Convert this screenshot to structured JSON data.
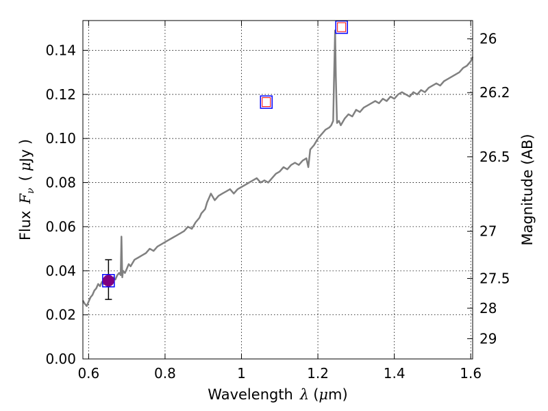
{
  "chart_data": {
    "type": "line",
    "xlabel": {
      "prefix": "Wavelength",
      "symbol": "λ",
      "unit_open": "(",
      "unit_mu": "μ",
      "unit_rest": "m)"
    },
    "ylabel": {
      "prefix": "Flux",
      "symbol": "F",
      "sub": "ν",
      "unit_open": "(",
      "unit_mu": "μ",
      "unit_rest": "Jy )"
    },
    "y2label": "Magnitude (AB)",
    "xlim": [
      0.585,
      1.605
    ],
    "ylim": [
      0.0,
      0.1535
    ],
    "grid": true,
    "x_ticks": [
      {
        "value": 0.6,
        "label": "0.6"
      },
      {
        "value": 0.8,
        "label": "0.8"
      },
      {
        "value": 1.0,
        "label": "1"
      },
      {
        "value": 1.2,
        "label": "1.2"
      },
      {
        "value": 1.4,
        "label": "1.4"
      },
      {
        "value": 1.6,
        "label": "1.6"
      }
    ],
    "y_ticks": [
      {
        "value": 0.0,
        "label": "0.00"
      },
      {
        "value": 0.02,
        "label": "0.02"
      },
      {
        "value": 0.04,
        "label": "0.04"
      },
      {
        "value": 0.06,
        "label": "0.06"
      },
      {
        "value": 0.08,
        "label": "0.08"
      },
      {
        "value": 0.1,
        "label": "0.10"
      },
      {
        "value": 0.12,
        "label": "0.12"
      },
      {
        "value": 0.14,
        "label": "0.14"
      }
    ],
    "y2_ticks": [
      {
        "label": "26",
        "y_equiv": 0.1452
      },
      {
        "label": "26.2",
        "y_equiv": 0.1208
      },
      {
        "label": "26.5",
        "y_equiv": 0.0917
      },
      {
        "label": "27",
        "y_equiv": 0.0579
      },
      {
        "label": "27.5",
        "y_equiv": 0.0365
      },
      {
        "label": "28",
        "y_equiv": 0.023
      },
      {
        "label": "29",
        "y_equiv": 0.0092
      }
    ],
    "series": [
      {
        "type": "line",
        "color": "#808080",
        "x": [
          0.585,
          0.59,
          0.595,
          0.6,
          0.605,
          0.61,
          0.615,
          0.62,
          0.625,
          0.63,
          0.635,
          0.64,
          0.645,
          0.65,
          0.655,
          0.66,
          0.665,
          0.67,
          0.675,
          0.68,
          0.684,
          0.686,
          0.688,
          0.69,
          0.695,
          0.7,
          0.705,
          0.71,
          0.72,
          0.73,
          0.74,
          0.75,
          0.76,
          0.77,
          0.78,
          0.79,
          0.8,
          0.81,
          0.82,
          0.83,
          0.84,
          0.85,
          0.86,
          0.87,
          0.88,
          0.89,
          0.895,
          0.9,
          0.905,
          0.91,
          0.915,
          0.92,
          0.93,
          0.94,
          0.95,
          0.96,
          0.97,
          0.98,
          0.99,
          1.0,
          1.01,
          1.02,
          1.03,
          1.04,
          1.05,
          1.06,
          1.07,
          1.08,
          1.09,
          1.1,
          1.11,
          1.12,
          1.13,
          1.14,
          1.15,
          1.16,
          1.17,
          1.175,
          1.18,
          1.185,
          1.19,
          1.2,
          1.21,
          1.22,
          1.23,
          1.235,
          1.24,
          1.242,
          1.245,
          1.247,
          1.25,
          1.255,
          1.26,
          1.27,
          1.28,
          1.29,
          1.3,
          1.31,
          1.32,
          1.33,
          1.34,
          1.35,
          1.36,
          1.37,
          1.38,
          1.39,
          1.4,
          1.41,
          1.42,
          1.43,
          1.44,
          1.45,
          1.46,
          1.47,
          1.48,
          1.49,
          1.5,
          1.51,
          1.52,
          1.53,
          1.54,
          1.55,
          1.56,
          1.57,
          1.58,
          1.59,
          1.6,
          1.605
        ],
        "y": [
          0.0265,
          0.025,
          0.024,
          0.026,
          0.028,
          0.029,
          0.031,
          0.032,
          0.034,
          0.033,
          0.035,
          0.034,
          0.036,
          0.035,
          0.036,
          0.035,
          0.037,
          0.036,
          0.038,
          0.039,
          0.038,
          0.0555,
          0.037,
          0.04,
          0.039,
          0.041,
          0.043,
          0.042,
          0.045,
          0.046,
          0.047,
          0.048,
          0.05,
          0.049,
          0.051,
          0.052,
          0.053,
          0.054,
          0.055,
          0.056,
          0.057,
          0.058,
          0.06,
          0.059,
          0.062,
          0.064,
          0.066,
          0.067,
          0.068,
          0.071,
          0.073,
          0.075,
          0.072,
          0.074,
          0.075,
          0.076,
          0.077,
          0.075,
          0.077,
          0.078,
          0.079,
          0.08,
          0.081,
          0.082,
          0.08,
          0.081,
          0.08,
          0.082,
          0.084,
          0.085,
          0.087,
          0.086,
          0.088,
          0.089,
          0.088,
          0.09,
          0.091,
          0.087,
          0.095,
          0.096,
          0.097,
          0.1,
          0.102,
          0.104,
          0.105,
          0.106,
          0.108,
          0.125,
          0.149,
          0.128,
          0.107,
          0.108,
          0.106,
          0.109,
          0.111,
          0.11,
          0.113,
          0.112,
          0.114,
          0.115,
          0.116,
          0.117,
          0.116,
          0.118,
          0.117,
          0.119,
          0.118,
          0.12,
          0.121,
          0.12,
          0.119,
          0.121,
          0.12,
          0.122,
          0.121,
          0.123,
          0.124,
          0.125,
          0.124,
          0.126,
          0.127,
          0.128,
          0.129,
          0.13,
          0.132,
          0.133,
          0.135,
          0.137
        ]
      }
    ],
    "photometry_boxes": [
      {
        "x": 0.652,
        "y": 0.0355,
        "fill": "#800080",
        "marker": "circle",
        "border": "#0000ff"
      },
      {
        "x": 1.065,
        "y": 0.1165,
        "fill": "none",
        "marker": "square",
        "border": "#0000ff",
        "inner": "#ff0000"
      },
      {
        "x": 1.262,
        "y": 0.1505,
        "fill": "none",
        "marker": "square",
        "border": "#0000ff",
        "inner": "#ff0000"
      }
    ],
    "errorbar": {
      "x": 0.652,
      "y": 0.0355,
      "ylow": 0.027,
      "yhigh": 0.045,
      "color": "#000000"
    }
  }
}
